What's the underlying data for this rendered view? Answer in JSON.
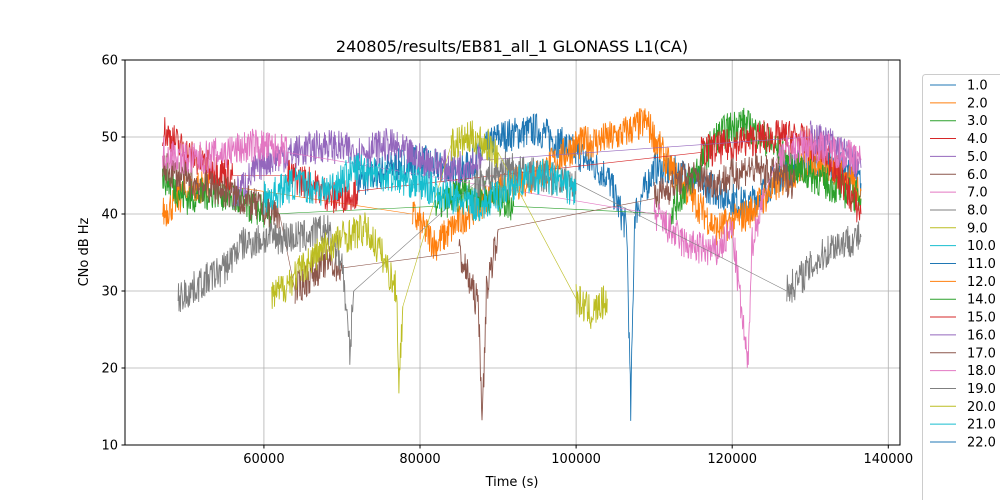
{
  "chart_data": {
    "type": "line",
    "title": "240805/results/EB81_all_1 GLONASS L1(CA)",
    "xlabel": "Time (s)",
    "ylabel": "CNo dB Hz",
    "xlim": [
      42200,
      141500
    ],
    "ylim": [
      10,
      60
    ],
    "xticks": [
      60000,
      80000,
      100000,
      120000,
      140000
    ],
    "yticks": [
      10,
      20,
      30,
      40,
      50,
      60
    ],
    "grid": true,
    "legend_position": "right, outside (partially cut off)",
    "legend": [
      "1.0",
      "2.0",
      "3.0",
      "4.0",
      "5.0",
      "6.0",
      "7.0",
      "8.0",
      "9.0",
      "10.0",
      "11.0",
      "12.0",
      "14.0",
      "15.0",
      "16.0",
      "17.0",
      "18.0",
      "19.0",
      "20.0",
      "21.0",
      "22.0"
    ],
    "colors": [
      "#1f77b4",
      "#ff7f0e",
      "#2ca02c",
      "#d62728",
      "#9467bd",
      "#8c564b",
      "#e377c2",
      "#7f7f7f",
      "#bcbd22",
      "#17becf"
    ],
    "series": [
      {
        "name": "1.0",
        "segments": [
          [
            [
              72000,
              44
            ],
            [
              76000,
              46
            ],
            [
              80000,
              47
            ],
            [
              85000,
              45
            ],
            [
              90000,
              50
            ],
            [
              95000,
              51
            ],
            [
              100000,
              48
            ],
            [
              104000,
              45
            ],
            [
              106500,
              38
            ],
            [
              107000,
              14
            ],
            [
              107500,
              40
            ],
            [
              110000,
              46
            ],
            [
              114000,
              45
            ],
            [
              118000,
              43
            ],
            [
              122000,
              41
            ],
            [
              126000,
              45
            ],
            [
              130000,
              47
            ],
            [
              134000,
              46
            ],
            [
              136500,
              44
            ]
          ]
        ]
      },
      {
        "name": "2.0",
        "segments": [
          [
            [
              47000,
              40
            ],
            [
              50000,
              43
            ],
            [
              53000,
              44
            ]
          ],
          [
            [
              79000,
              40
            ],
            [
              82000,
              36
            ],
            [
              86000,
              40
            ],
            [
              90000,
              43
            ],
            [
              95000,
              45
            ],
            [
              100000,
              49
            ],
            [
              105000,
              50
            ],
            [
              109000,
              52
            ],
            [
              112000,
              46
            ],
            [
              115000,
              42
            ],
            [
              118000,
              38
            ],
            [
              122000,
              40
            ],
            [
              126000,
              44
            ],
            [
              130000,
              47
            ],
            [
              134000,
              45
            ],
            [
              136500,
              43
            ]
          ]
        ]
      },
      {
        "name": "3.0",
        "segments": [
          [
            [
              47000,
              45
            ],
            [
              50000,
              42
            ],
            [
              54000,
              43
            ],
            [
              58000,
              41
            ],
            [
              61000,
              40
            ]
          ],
          [
            [
              82000,
              41
            ],
            [
              86000,
              43
            ],
            [
              90000,
              42
            ],
            [
              92000,
              41
            ]
          ],
          [
            [
              112000,
              40
            ],
            [
              115000,
              45
            ],
            [
              118000,
              50
            ],
            [
              121000,
              52
            ],
            [
              124000,
              50
            ],
            [
              128000,
              46
            ],
            [
              132000,
              44
            ],
            [
              136500,
              42
            ]
          ]
        ]
      },
      {
        "name": "4.0",
        "segments": [
          [
            [
              47000,
              51
            ],
            [
              50000,
              48
            ],
            [
              53000,
              46
            ],
            [
              56000,
              45
            ]
          ],
          [
            [
              63000,
              45
            ],
            [
              66000,
              44
            ],
            [
              69000,
              42
            ],
            [
              72000,
              43
            ]
          ],
          [
            [
              116000,
              48
            ],
            [
              120000,
              49
            ],
            [
              124000,
              50
            ],
            [
              128000,
              50
            ],
            [
              132000,
              48
            ],
            [
              136500,
              40
            ]
          ]
        ]
      },
      {
        "name": "5.0",
        "segments": [
          [
            [
              56000,
              42
            ],
            [
              60000,
              47
            ],
            [
              64000,
              48
            ],
            [
              68000,
              49
            ],
            [
              72000,
              48
            ],
            [
              76000,
              49
            ],
            [
              80000,
              47
            ],
            [
              84000,
              46
            ],
            [
              88000,
              47
            ]
          ],
          [
            [
              130000,
              50
            ],
            [
              133000,
              49
            ],
            [
              136500,
              46
            ]
          ]
        ]
      },
      {
        "name": "6.0",
        "segments": [
          [
            [
              47000,
              46
            ],
            [
              51000,
              44
            ],
            [
              55000,
              43
            ],
            [
              59000,
              41
            ],
            [
              62000,
              40
            ]
          ],
          [
            [
              64000,
              30
            ],
            [
              66000,
              32
            ],
            [
              68000,
              34
            ],
            [
              70000,
              33
            ]
          ],
          [
            [
              85000,
              35
            ],
            [
              87500,
              28
            ],
            [
              88000,
              13
            ],
            [
              88500,
              30
            ],
            [
              90000,
              38
            ]
          ],
          [
            [
              110000,
              42
            ],
            [
              114000,
              45
            ],
            [
              118000,
              44
            ],
            [
              122000,
              46
            ],
            [
              126000,
              45
            ],
            [
              128000,
              44
            ]
          ]
        ]
      },
      {
        "name": "7.0",
        "segments": [
          [
            [
              47000,
              48
            ],
            [
              51000,
              47
            ],
            [
              55000,
              48
            ],
            [
              59000,
              49
            ],
            [
              63000,
              48
            ]
          ],
          [
            [
              110000,
              40
            ],
            [
              114000,
              36
            ],
            [
              118000,
              35
            ],
            [
              120000,
              38
            ],
            [
              122000,
              20
            ],
            [
              122500,
              36
            ],
            [
              124000,
              42
            ]
          ],
          [
            [
              126000,
              48
            ],
            [
              130000,
              49
            ],
            [
              134000,
              48
            ],
            [
              136500,
              47
            ]
          ]
        ]
      },
      {
        "name": "8.0",
        "segments": [
          [
            [
              49000,
              29
            ],
            [
              52000,
              31
            ],
            [
              55000,
              33
            ],
            [
              57000,
              36
            ],
            [
              61000,
              37
            ],
            [
              65000,
              37
            ],
            [
              68000,
              38
            ],
            [
              70000,
              34
            ],
            [
              71000,
              22
            ],
            [
              71500,
              30
            ]
          ],
          [
            [
              87000,
              44
            ],
            [
              91000,
              46
            ],
            [
              95000,
              45
            ],
            [
              100000,
              44
            ]
          ],
          [
            [
              127000,
              30
            ],
            [
              130000,
              33
            ],
            [
              133000,
              36
            ],
            [
              136500,
              37
            ]
          ]
        ]
      },
      {
        "name": "9.0",
        "segments": [
          [
            [
              61000,
              29
            ],
            [
              64000,
              32
            ],
            [
              67000,
              35
            ],
            [
              70000,
              37
            ],
            [
              73000,
              38
            ],
            [
              75000,
              35
            ],
            [
              77000,
              30
            ],
            [
              77300,
              18
            ],
            [
              77800,
              28
            ]
          ],
          [
            [
              84000,
              49
            ],
            [
              87000,
              50
            ],
            [
              90000,
              48
            ]
          ],
          [
            [
              100000,
              29
            ],
            [
              102000,
              27
            ],
            [
              104000,
              29
            ]
          ]
        ]
      },
      {
        "name": "10.0",
        "segments": [
          [
            [
              60000,
              42
            ],
            [
              64000,
              44
            ],
            [
              68000,
              43
            ],
            [
              72000,
              46
            ],
            [
              76000,
              45
            ],
            [
              80000,
              44
            ],
            [
              84000,
              42
            ],
            [
              88000,
              41
            ],
            [
              92000,
              44
            ],
            [
              96000,
              45
            ],
            [
              100000,
              43
            ]
          ]
        ]
      }
    ]
  }
}
